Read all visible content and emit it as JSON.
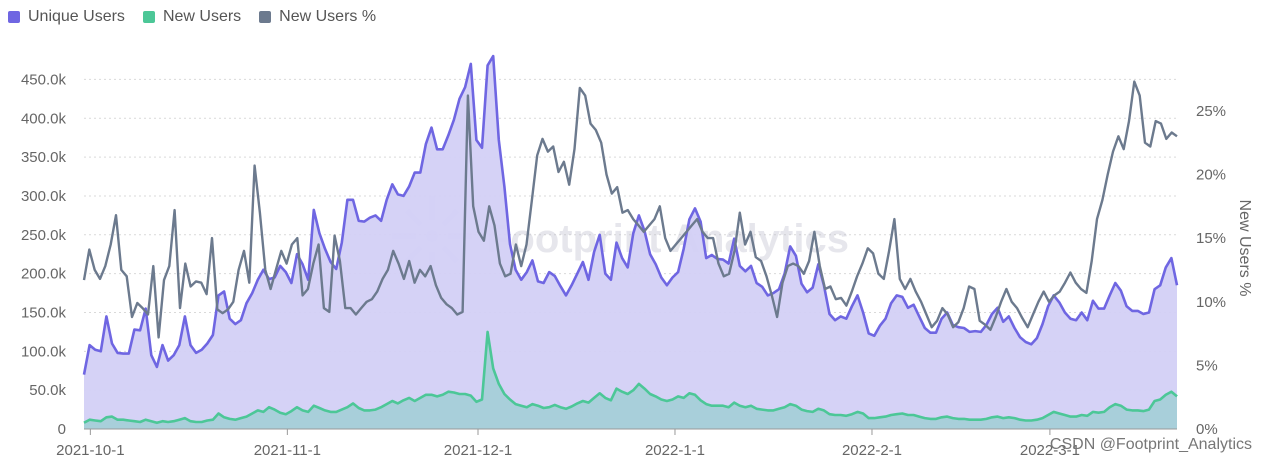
{
  "legend": {
    "items": [
      {
        "label": "Unique Users",
        "color": "#6f66e2"
      },
      {
        "label": "New Users",
        "color": "#4cc797"
      },
      {
        "label": "New Users %",
        "color": "#6c7a8e"
      }
    ]
  },
  "watermark": {
    "text": "Footprint Analytics"
  },
  "credit": {
    "text": "CSDN @Footprint_Analytics"
  },
  "chart_data": {
    "type": "line",
    "x_axis": {
      "type": "date",
      "start": "2021-09-30",
      "end": "2022-03-21",
      "ticks": [
        "2021-10-1",
        "2021-11-1",
        "2021-12-1",
        "2022-1-1",
        "2022-2-1",
        "2022-3-1"
      ]
    },
    "y_axis_left": {
      "range": [
        0,
        475000
      ],
      "ticks": [
        "0",
        "50.0k",
        "100.0k",
        "150.0k",
        "200.0k",
        "250.0k",
        "300.0k",
        "350.0k",
        "400.0k",
        "450.0k"
      ],
      "grid": true
    },
    "y_axis_right": {
      "label": "New Users %",
      "range": [
        0,
        0.29
      ],
      "ticks": [
        "0%",
        "5%",
        "10%",
        "15%",
        "20%",
        "25%"
      ]
    },
    "series": [
      {
        "name": "Unique Users",
        "type": "area",
        "axis": "left",
        "color": "#6f66e2",
        "fill": "#d3d0f6",
        "values": [
          70000,
          108000,
          102000,
          100000,
          145000,
          110000,
          98000,
          97000,
          97000,
          128000,
          127000,
          155000,
          95000,
          80000,
          108000,
          88000,
          95000,
          108000,
          145000,
          108000,
          98000,
          102000,
          110000,
          121000,
          172000,
          177000,
          142000,
          135000,
          140000,
          162000,
          175000,
          192000,
          205000,
          193000,
          195000,
          210000,
          202000,
          188000,
          225000,
          212000,
          192000,
          282000,
          252000,
          232000,
          215000,
          206000,
          240000,
          295000,
          295000,
          268000,
          267000,
          272000,
          275000,
          268000,
          295000,
          315000,
          302000,
          300000,
          312000,
          330000,
          330000,
          367000,
          388000,
          360000,
          360000,
          378000,
          398000,
          425000,
          440000,
          470000,
          372000,
          362000,
          468000,
          480000,
          372000,
          312000,
          238000,
          205000,
          192000,
          202000,
          217000,
          190000,
          188000,
          202000,
          197000,
          184000,
          172000,
          185000,
          200000,
          215000,
          192000,
          228000,
          250000,
          200000,
          192000,
          240000,
          220000,
          208000,
          252000,
          275000,
          255000,
          225000,
          212000,
          195000,
          185000,
          195000,
          202000,
          232000,
          270000,
          284000,
          267000,
          220000,
          224000,
          219000,
          218000,
          213000,
          245000,
          210000,
          203000,
          210000,
          188000,
          183000,
          172000,
          175000,
          180000,
          200000,
          235000,
          223000,
          187000,
          176000,
          182000,
          212000,
          185000,
          148000,
          140000,
          145000,
          142000,
          158000,
          172000,
          150000,
          123000,
          120000,
          133000,
          142000,
          162000,
          172000,
          170000,
          156000,
          160000,
          145000,
          130000,
          124000,
          124000,
          142000,
          150000,
          134000,
          131000,
          130000,
          125000,
          126000,
          125000,
          134000,
          148000,
          156000,
          138000,
          145000,
          130000,
          118000,
          112000,
          109000,
          117000,
          135000,
          158000,
          172000,
          163000,
          150000,
          142000,
          140000,
          150000,
          140000,
          165000,
          155000,
          155000,
          172000,
          188000,
          178000,
          158000,
          152000,
          152000,
          148000,
          150000,
          180000,
          185000,
          208000,
          220000,
          185000
        ],
        "start_x": "2021-09-30",
        "end_x": "2022-03-21"
      },
      {
        "name": "New Users",
        "type": "area",
        "axis": "left",
        "color": "#4cc797",
        "fill": "#a5cfd8",
        "values": [
          8000,
          12000,
          11000,
          10000,
          15000,
          16000,
          12000,
          12000,
          11000,
          10000,
          9000,
          12000,
          10000,
          8000,
          10000,
          9000,
          10000,
          12000,
          14000,
          10000,
          9000,
          9000,
          11000,
          12000,
          20000,
          15000,
          13000,
          12000,
          14000,
          16000,
          20000,
          24000,
          22000,
          28000,
          25000,
          21000,
          19000,
          23000,
          28000,
          24000,
          22000,
          30000,
          27000,
          24000,
          22000,
          22000,
          25000,
          28000,
          33000,
          27000,
          24000,
          24000,
          25000,
          28000,
          32000,
          36000,
          33000,
          37000,
          40000,
          36000,
          40000,
          44000,
          44000,
          42000,
          44000,
          48000,
          47000,
          45000,
          45000,
          43000,
          35000,
          38000,
          125000,
          78000,
          58000,
          45000,
          38000,
          32000,
          30000,
          28000,
          32000,
          30000,
          27000,
          28000,
          31000,
          28000,
          26000,
          29000,
          33000,
          36000,
          34000,
          40000,
          46000,
          40000,
          37000,
          52000,
          48000,
          45000,
          50000,
          58000,
          52000,
          45000,
          42000,
          38000,
          36000,
          38000,
          42000,
          40000,
          46000,
          44000,
          37000,
          32000,
          30000,
          30000,
          30000,
          28000,
          34000,
          30000,
          28000,
          30000,
          26000,
          25000,
          24000,
          24000,
          26000,
          28000,
          32000,
          30000,
          25000,
          23000,
          22000,
          26000,
          24000,
          19000,
          18000,
          18000,
          17000,
          19000,
          22000,
          20000,
          14000,
          14000,
          15000,
          16000,
          18000,
          19000,
          20000,
          18000,
          18000,
          16000,
          14000,
          13000,
          13000,
          15000,
          16000,
          14000,
          13000,
          13000,
          12000,
          12000,
          12000,
          13000,
          15000,
          16000,
          14000,
          15000,
          14000,
          12000,
          11000,
          11000,
          12000,
          14000,
          18000,
          22000,
          20000,
          18000,
          16000,
          16000,
          18000,
          17000,
          22000,
          21000,
          22000,
          28000,
          32000,
          30000,
          25000,
          24000,
          24000,
          23000,
          25000,
          36000,
          38000,
          44000,
          48000,
          42000
        ],
        "start_x": "2021-09-30",
        "end_x": "2022-03-21"
      },
      {
        "name": "New Users %",
        "type": "line",
        "axis": "right",
        "color": "#6c7a8e",
        "values": [
          0.117,
          0.141,
          0.125,
          0.118,
          0.128,
          0.145,
          0.168,
          0.125,
          0.12,
          0.088,
          0.099,
          0.095,
          0.09,
          0.128,
          0.072,
          0.117,
          0.128,
          0.172,
          0.095,
          0.13,
          0.112,
          0.116,
          0.115,
          0.106,
          0.15,
          0.094,
          0.091,
          0.094,
          0.1,
          0.125,
          0.14,
          0.115,
          0.207,
          0.17,
          0.125,
          0.11,
          0.125,
          0.14,
          0.13,
          0.145,
          0.15,
          0.105,
          0.11,
          0.13,
          0.145,
          0.095,
          0.092,
          0.152,
          0.132,
          0.095,
          0.095,
          0.09,
          0.095,
          0.1,
          0.102,
          0.108,
          0.118,
          0.125,
          0.14,
          0.13,
          0.118,
          0.132,
          0.115,
          0.125,
          0.12,
          0.128,
          0.113,
          0.103,
          0.098,
          0.095,
          0.09,
          0.092,
          0.262,
          0.175,
          0.155,
          0.148,
          0.175,
          0.16,
          0.13,
          0.12,
          0.122,
          0.145,
          0.128,
          0.145,
          0.18,
          0.215,
          0.228,
          0.218,
          0.222,
          0.202,
          0.21,
          0.192,
          0.22,
          0.268,
          0.262,
          0.24,
          0.235,
          0.225,
          0.2,
          0.185,
          0.19,
          0.17,
          0.172,
          0.165,
          0.16,
          0.155,
          0.16,
          0.165,
          0.175,
          0.15,
          0.14,
          0.145,
          0.15,
          0.155,
          0.16,
          0.165,
          0.155,
          0.15,
          0.15,
          0.13,
          0.12,
          0.122,
          0.14,
          0.17,
          0.145,
          0.155,
          0.135,
          0.132,
          0.12,
          0.105,
          0.088,
          0.115,
          0.128,
          0.13,
          0.128,
          0.122,
          0.132,
          0.155,
          0.128,
          0.11,
          0.112,
          0.102,
          0.103,
          0.097,
          0.108,
          0.12,
          0.13,
          0.142,
          0.138,
          0.122,
          0.118,
          0.14,
          0.165,
          0.118,
          0.11,
          0.118,
          0.108,
          0.1,
          0.09,
          0.08,
          0.085,
          0.095,
          0.09,
          0.08,
          0.084,
          0.095,
          0.112,
          0.11,
          0.085,
          0.082,
          0.078,
          0.088,
          0.1,
          0.11,
          0.1,
          0.095,
          0.087,
          0.08,
          0.09,
          0.1,
          0.108,
          0.1,
          0.105,
          0.108,
          0.115,
          0.123,
          0.115,
          0.11,
          0.107,
          0.132,
          0.165,
          0.18,
          0.2,
          0.218,
          0.23,
          0.22,
          0.242,
          0.273,
          0.262,
          0.225,
          0.222,
          0.242,
          0.24,
          0.228,
          0.233,
          0.23
        ],
        "start_x": "2021-09-30",
        "end_x": "2022-03-21"
      }
    ]
  }
}
